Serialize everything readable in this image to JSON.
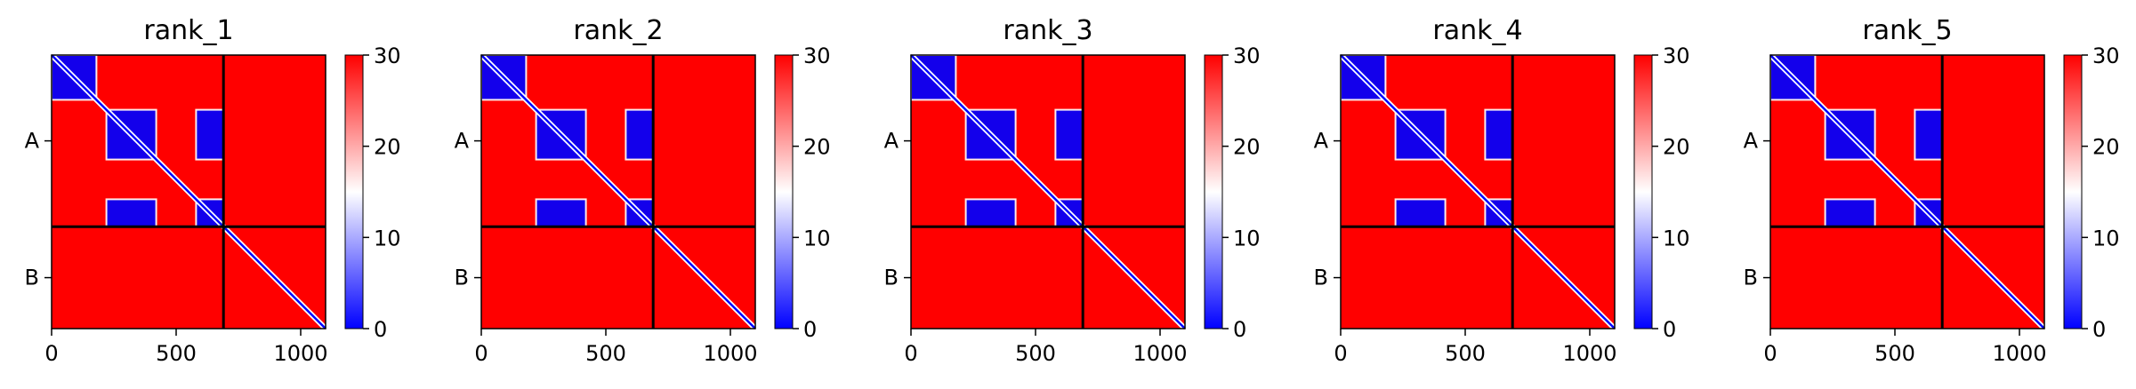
{
  "chart_data": [
    {
      "type": "heatmap",
      "title": "rank_1",
      "colormap": "bwr",
      "colors": {
        "low": "#0000ff",
        "mid": "#ffffff",
        "high": "#ff0000"
      },
      "colorbar": {
        "range": [
          0,
          30
        ],
        "ticks": [
          "0",
          "10",
          "20",
          "30"
        ]
      },
      "xlim": [
        0,
        1100
      ],
      "x_ticks": [
        0,
        500,
        1000
      ],
      "x_tick_labels": [
        "0",
        "500",
        "1000"
      ],
      "chain_labels": [
        "A",
        "B"
      ],
      "chain_break": 690,
      "regions_low": [
        [
          0,
          0,
          180,
          180
        ],
        [
          220,
          220,
          420,
          420
        ],
        [
          580,
          580,
          690,
          690
        ],
        [
          220,
          580,
          420,
          690
        ],
        [
          580,
          220,
          690,
          420
        ]
      ],
      "diagonal": true
    },
    {
      "type": "heatmap",
      "title": "rank_2",
      "colormap": "bwr",
      "colors": {
        "low": "#0000ff",
        "mid": "#ffffff",
        "high": "#ff0000"
      },
      "colorbar": {
        "range": [
          0,
          30
        ],
        "ticks": [
          "0",
          "10",
          "20",
          "30"
        ]
      },
      "xlim": [
        0,
        1100
      ],
      "x_ticks": [
        0,
        500,
        1000
      ],
      "x_tick_labels": [
        "0",
        "500",
        "1000"
      ],
      "chain_labels": [
        "A",
        "B"
      ],
      "chain_break": 690,
      "regions_low": [
        [
          0,
          0,
          180,
          180
        ],
        [
          220,
          220,
          420,
          420
        ],
        [
          580,
          580,
          690,
          690
        ],
        [
          220,
          580,
          420,
          690
        ],
        [
          580,
          220,
          690,
          420
        ]
      ],
      "diagonal": true
    },
    {
      "type": "heatmap",
      "title": "rank_3",
      "colormap": "bwr",
      "colors": {
        "low": "#0000ff",
        "mid": "#ffffff",
        "high": "#ff0000"
      },
      "colorbar": {
        "range": [
          0,
          30
        ],
        "ticks": [
          "0",
          "10",
          "20",
          "30"
        ]
      },
      "xlim": [
        0,
        1100
      ],
      "x_ticks": [
        0,
        500,
        1000
      ],
      "x_tick_labels": [
        "0",
        "500",
        "1000"
      ],
      "chain_labels": [
        "A",
        "B"
      ],
      "chain_break": 690,
      "regions_low": [
        [
          0,
          0,
          180,
          180
        ],
        [
          220,
          220,
          420,
          420
        ],
        [
          580,
          580,
          690,
          690
        ],
        [
          220,
          580,
          420,
          690
        ],
        [
          580,
          220,
          690,
          420
        ]
      ],
      "diagonal": true
    },
    {
      "type": "heatmap",
      "title": "rank_4",
      "colormap": "bwr",
      "colors": {
        "low": "#0000ff",
        "mid": "#ffffff",
        "high": "#ff0000"
      },
      "colorbar": {
        "range": [
          0,
          30
        ],
        "ticks": [
          "0",
          "10",
          "20",
          "30"
        ]
      },
      "xlim": [
        0,
        1100
      ],
      "x_ticks": [
        0,
        500,
        1000
      ],
      "x_tick_labels": [
        "0",
        "500",
        "1000"
      ],
      "chain_labels": [
        "A",
        "B"
      ],
      "chain_break": 690,
      "regions_low": [
        [
          0,
          0,
          180,
          180
        ],
        [
          220,
          220,
          420,
          420
        ],
        [
          580,
          580,
          690,
          690
        ],
        [
          220,
          580,
          420,
          690
        ],
        [
          580,
          220,
          690,
          420
        ]
      ],
      "diagonal": true
    },
    {
      "type": "heatmap",
      "title": "rank_5",
      "colormap": "bwr",
      "colors": {
        "low": "#0000ff",
        "mid": "#ffffff",
        "high": "#ff0000"
      },
      "colorbar": {
        "range": [
          0,
          30
        ],
        "ticks": [
          "0",
          "10",
          "20",
          "30"
        ]
      },
      "xlim": [
        0,
        1100
      ],
      "x_ticks": [
        0,
        500,
        1000
      ],
      "x_tick_labels": [
        "0",
        "500",
        "1000"
      ],
      "chain_labels": [
        "A",
        "B"
      ],
      "chain_break": 690,
      "regions_low": [
        [
          0,
          0,
          180,
          180
        ],
        [
          220,
          220,
          420,
          420
        ],
        [
          580,
          580,
          690,
          690
        ],
        [
          220,
          580,
          420,
          690
        ],
        [
          580,
          220,
          690,
          420
        ]
      ],
      "diagonal": true
    }
  ]
}
